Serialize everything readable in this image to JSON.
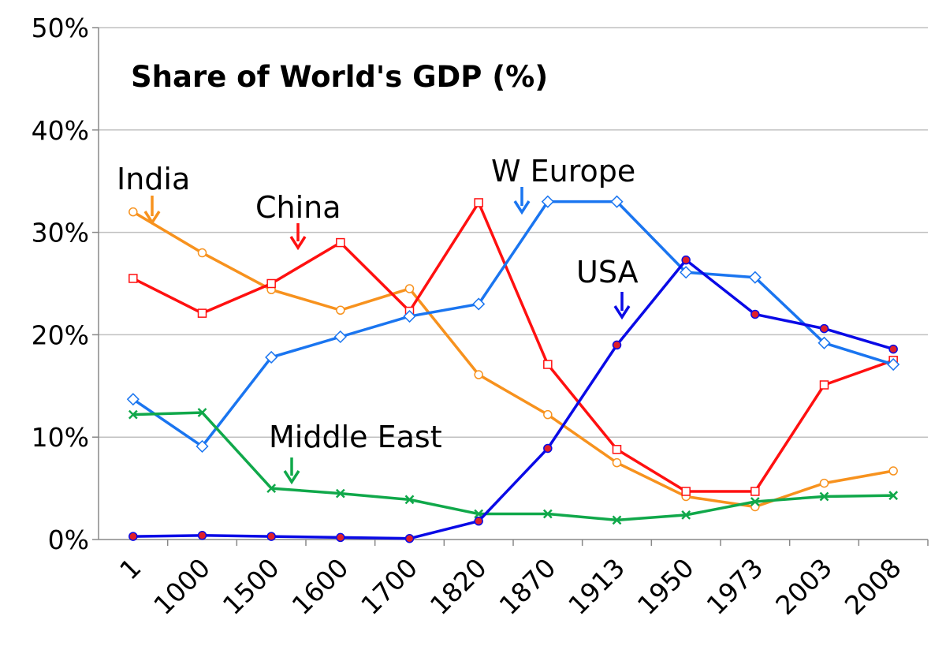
{
  "chart_data": {
    "type": "line",
    "title": "Share of World's GDP (%)",
    "xlabel": "",
    "ylabel": "",
    "ylim": [
      0,
      50
    ],
    "yticks": [
      "0%",
      "10%",
      "20%",
      "30%",
      "40%",
      "50%"
    ],
    "grid": true,
    "categories": [
      "1",
      "1000",
      "1500",
      "1600",
      "1700",
      "1820",
      "1870",
      "1913",
      "1950",
      "1973",
      "2003",
      "2008"
    ],
    "series": [
      {
        "name": "India",
        "color": "#f7921e",
        "marker": "open-circle",
        "values": [
          32.0,
          28.0,
          24.4,
          22.4,
          24.5,
          16.1,
          12.2,
          7.5,
          4.2,
          3.2,
          5.5,
          6.7
        ]
      },
      {
        "name": "China",
        "color": "#ff1010",
        "marker": "open-square",
        "values": [
          25.5,
          22.1,
          25.0,
          29.0,
          22.3,
          32.9,
          17.1,
          8.8,
          4.7,
          4.7,
          15.1,
          17.5
        ]
      },
      {
        "name": "W Europe",
        "color": "#1a75f0",
        "marker": "open-diamond",
        "values": [
          13.7,
          9.1,
          17.8,
          19.8,
          21.8,
          23.0,
          33.0,
          33.0,
          26.1,
          25.6,
          19.2,
          17.1
        ]
      },
      {
        "name": "USA",
        "color": "#0a0ae6",
        "marker": "filled-circle",
        "values": [
          0.3,
          0.4,
          0.3,
          0.2,
          0.1,
          1.8,
          8.9,
          19.0,
          27.3,
          22.0,
          20.6,
          18.6
        ]
      },
      {
        "name": "Middle East",
        "color": "#10a84a",
        "marker": "x",
        "values": [
          12.2,
          12.4,
          5.0,
          4.5,
          3.9,
          2.5,
          2.5,
          1.9,
          2.4,
          3.7,
          4.2,
          4.3
        ]
      }
    ],
    "annotations": [
      {
        "text": "India",
        "series": "India",
        "color": "#f7921e"
      },
      {
        "text": "China",
        "series": "China",
        "color": "#ff1010"
      },
      {
        "text": "W Europe",
        "series": "W Europe",
        "color": "#1a75f0"
      },
      {
        "text": "USA",
        "series": "USA",
        "color": "#0a0ae6"
      },
      {
        "text": "Middle East",
        "series": "Middle East",
        "color": "#10a84a"
      }
    ]
  }
}
